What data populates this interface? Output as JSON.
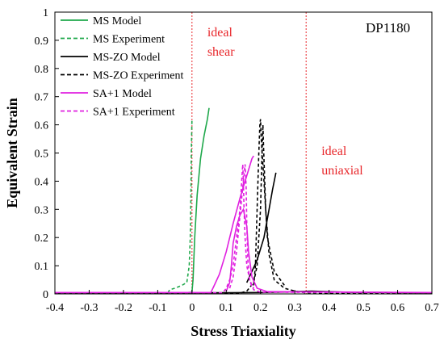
{
  "chart_data": {
    "type": "line",
    "title": "DP1180",
    "xlabel": "Stress Triaxiality",
    "ylabel": "Equivalent Strain",
    "xlim": [
      -0.4,
      0.7
    ],
    "ylim": [
      0,
      1
    ],
    "xticks": [
      "-0.4",
      "-0.3",
      "-0.2",
      "-0.1",
      "0",
      "0.1",
      "0.2",
      "0.3",
      "0.4",
      "0.5",
      "0.6",
      "0.7"
    ],
    "yticks": [
      "0",
      "0.1",
      "0.2",
      "0.3",
      "0.4",
      "0.5",
      "0.6",
      "0.7",
      "0.8",
      "0.9",
      "1"
    ],
    "grid": false,
    "legend_position": "top-left",
    "reference_lines": [
      {
        "x": 0.0,
        "label": [
          "ideal",
          "shear"
        ],
        "color": "#e8262a"
      },
      {
        "x": 0.333,
        "label": [
          "ideal",
          "uniaxial"
        ],
        "color": "#e8262a"
      }
    ],
    "series": [
      {
        "name": "MS Model",
        "color": "#1fa84b",
        "dash": "solid",
        "points": [
          [
            -0.4,
            0.003
          ],
          [
            -0.1,
            0.003
          ],
          [
            -0.02,
            0.004
          ],
          [
            0.0,
            0.006
          ],
          [
            0.003,
            0.05
          ],
          [
            0.008,
            0.2
          ],
          [
            0.015,
            0.35
          ],
          [
            0.025,
            0.48
          ],
          [
            0.035,
            0.56
          ],
          [
            0.045,
            0.62
          ],
          [
            0.05,
            0.66
          ]
        ]
      },
      {
        "name": "MS Experiment",
        "color": "#1fa84b",
        "dash": "dashed",
        "points": [
          [
            -0.4,
            0.003
          ],
          [
            -0.1,
            0.003
          ],
          [
            -0.07,
            0.004
          ],
          [
            -0.065,
            0.015
          ],
          [
            -0.05,
            0.02
          ],
          [
            -0.03,
            0.03
          ],
          [
            -0.015,
            0.04
          ],
          [
            -0.008,
            0.1
          ],
          [
            -0.005,
            0.2
          ],
          [
            -0.003,
            0.35
          ],
          [
            -0.002,
            0.5
          ],
          [
            0.0,
            0.62
          ]
        ]
      },
      {
        "name": "MS-ZO Model",
        "color": "#000000",
        "dash": "solid",
        "points": [
          [
            -0.4,
            0.004
          ],
          [
            0.1,
            0.004
          ],
          [
            0.2,
            0.005
          ],
          [
            0.3,
            0.008
          ],
          [
            0.35,
            0.01
          ],
          [
            0.45,
            0.006
          ],
          [
            0.7,
            0.004
          ]
        ],
        "extra": [
          [
            0.16,
            0.04
          ],
          [
            0.19,
            0.12
          ],
          [
            0.21,
            0.2
          ],
          [
            0.225,
            0.3
          ],
          [
            0.235,
            0.37
          ],
          [
            0.245,
            0.43
          ]
        ]
      },
      {
        "name": "MS-ZO Experiment",
        "color": "#000000",
        "dash": "dashed",
        "points": [
          [
            -0.4,
            0.003
          ],
          [
            0.14,
            0.003
          ],
          [
            0.16,
            0.01
          ],
          [
            0.18,
            0.04
          ],
          [
            0.19,
            0.1
          ],
          [
            0.2,
            0.3
          ],
          [
            0.205,
            0.52
          ],
          [
            0.207,
            0.6
          ],
          [
            0.209,
            0.52
          ],
          [
            0.215,
            0.3
          ],
          [
            0.225,
            0.14
          ],
          [
            0.24,
            0.05
          ],
          [
            0.27,
            0.02
          ],
          [
            0.3,
            0.01
          ],
          [
            0.33,
            0.004
          ],
          [
            0.7,
            0.003
          ]
        ],
        "extra": [
          [
            0.18,
            0.03
          ],
          [
            0.185,
            0.1
          ],
          [
            0.19,
            0.3
          ],
          [
            0.195,
            0.5
          ],
          [
            0.198,
            0.6
          ],
          [
            0.2,
            0.62
          ],
          [
            0.202,
            0.55
          ],
          [
            0.21,
            0.4
          ],
          [
            0.22,
            0.2
          ],
          [
            0.24,
            0.08
          ],
          [
            0.27,
            0.03
          ]
        ]
      },
      {
        "name": "SA+1 Model",
        "color": "#e020e0",
        "dash": "solid",
        "points": [
          [
            -0.4,
            0.005
          ],
          [
            0.055,
            0.005
          ],
          [
            0.065,
            0.03
          ],
          [
            0.08,
            0.07
          ],
          [
            0.1,
            0.15
          ],
          [
            0.12,
            0.25
          ],
          [
            0.14,
            0.34
          ],
          [
            0.155,
            0.4
          ],
          [
            0.165,
            0.44
          ],
          [
            0.175,
            0.48
          ],
          [
            0.18,
            0.49
          ]
        ],
        "extra": [
          [
            0.1,
            0.01
          ],
          [
            0.11,
            0.04
          ],
          [
            0.115,
            0.1
          ],
          [
            0.12,
            0.18
          ],
          [
            0.13,
            0.24
          ],
          [
            0.14,
            0.28
          ],
          [
            0.15,
            0.3
          ],
          [
            0.16,
            0.24
          ],
          [
            0.165,
            0.15
          ],
          [
            0.175,
            0.06
          ],
          [
            0.19,
            0.02
          ],
          [
            0.22,
            0.008
          ],
          [
            0.7,
            0.005
          ]
        ]
      },
      {
        "name": "SA+1 Experiment",
        "color": "#e020e0",
        "dash": "dashed",
        "points": [
          [
            -0.4,
            0.004
          ],
          [
            0.09,
            0.004
          ],
          [
            0.1,
            0.02
          ],
          [
            0.11,
            0.05
          ],
          [
            0.12,
            0.1
          ],
          [
            0.13,
            0.2
          ],
          [
            0.14,
            0.3
          ],
          [
            0.145,
            0.4
          ],
          [
            0.148,
            0.46
          ],
          [
            0.15,
            0.4
          ],
          [
            0.152,
            0.3
          ],
          [
            0.155,
            0.2
          ],
          [
            0.16,
            0.1
          ],
          [
            0.17,
            0.04
          ],
          [
            0.18,
            0.015
          ],
          [
            0.2,
            0.006
          ],
          [
            0.7,
            0.004
          ]
        ],
        "extra": [
          [
            0.11,
            0.02
          ],
          [
            0.12,
            0.06
          ],
          [
            0.13,
            0.15
          ],
          [
            0.14,
            0.28
          ],
          [
            0.15,
            0.4
          ],
          [
            0.155,
            0.46
          ],
          [
            0.158,
            0.38
          ],
          [
            0.16,
            0.25
          ],
          [
            0.163,
            0.12
          ],
          [
            0.168,
            0.05
          ],
          [
            0.18,
            0.02
          ]
        ]
      }
    ]
  }
}
